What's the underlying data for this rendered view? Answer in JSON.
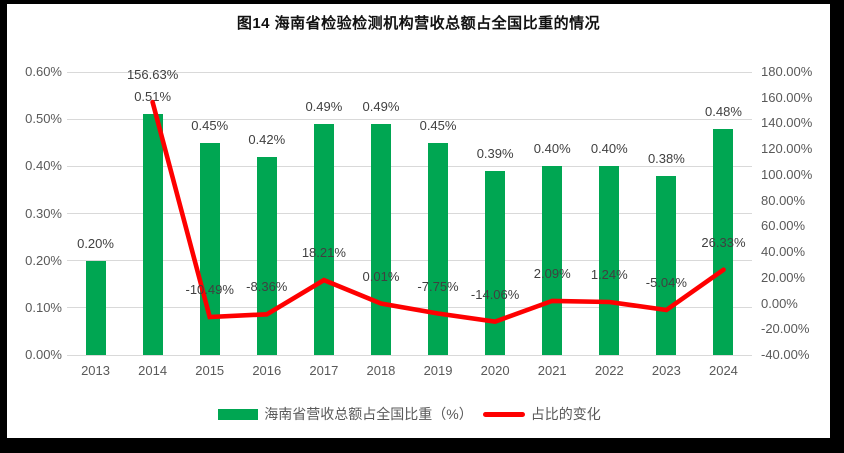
{
  "chart_data": {
    "type": "bar+line",
    "title": "图14 海南省检验检测机构营收总额占全国比重的情况",
    "categories": [
      "2013",
      "2014",
      "2015",
      "2016",
      "2017",
      "2018",
      "2019",
      "2020",
      "2021",
      "2022",
      "2023",
      "2024"
    ],
    "series": [
      {
        "name": "海南省营收总额占全国比重（%）",
        "type": "bar",
        "axis": "left",
        "color": "#00a652",
        "values": [
          0.2,
          0.51,
          0.45,
          0.42,
          0.49,
          0.49,
          0.45,
          0.39,
          0.4,
          0.4,
          0.38,
          0.48
        ],
        "labels": [
          "0.20%",
          "0.51%",
          "0.45%",
          "0.42%",
          "0.49%",
          "0.49%",
          "0.45%",
          "0.39%",
          "0.40%",
          "0.40%",
          "0.38%",
          "0.48%"
        ]
      },
      {
        "name": "占比的变化",
        "type": "line",
        "axis": "right",
        "color": "#fe0000",
        "start_index": 1,
        "values": [
          156.63,
          -10.49,
          -8.36,
          18.21,
          0.01,
          -7.75,
          -14.06,
          2.09,
          1.24,
          -5.04,
          26.33
        ],
        "labels": [
          "156.63%",
          "-10.49%",
          "-8.36%",
          "18.21%",
          "0.01%",
          "-7.75%",
          "-14.06%",
          "2.09%",
          "1.24%",
          "-5.04%",
          "26.33%"
        ]
      }
    ],
    "left_axis": {
      "min": 0,
      "max": 0.6,
      "step": 0.1,
      "tick_labels": [
        "0.00%",
        "0.10%",
        "0.20%",
        "0.30%",
        "0.40%",
        "0.50%",
        "0.60%"
      ]
    },
    "right_axis": {
      "min": -40,
      "max": 180,
      "step": 20,
      "tick_labels": [
        "-40.00%",
        "-20.00%",
        "0.00%",
        "20.00%",
        "40.00%",
        "60.00%",
        "80.00%",
        "100.00%",
        "120.00%",
        "140.00%",
        "160.00%",
        "180.00%"
      ]
    },
    "grid": "horizontal",
    "legend_position": "bottom",
    "legend": [
      {
        "label": "海南省营收总额占全国比重（%）",
        "color": "#00a652",
        "shape": "rect"
      },
      {
        "label": "占比的变化",
        "color": "#fe0000",
        "shape": "line"
      }
    ]
  }
}
